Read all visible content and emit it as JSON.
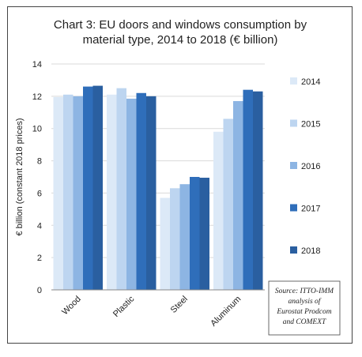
{
  "chart_data": {
    "type": "bar",
    "title_lines": [
      "Chart 3: EU doors and windows consumption by",
      "material type, 2014 to 2018 (€ billion)"
    ],
    "ylabel": "€ billion (constant 2018 prices)",
    "xlabel": "",
    "ylim": [
      0,
      14
    ],
    "yticks": [
      0,
      2,
      4,
      6,
      8,
      10,
      12,
      14
    ],
    "grid": true,
    "legend_position": "right",
    "categories": [
      "Wood",
      "Plastic",
      "Steel",
      "Aluminum"
    ],
    "series": [
      {
        "name": "2014",
        "color": "#dce9f7",
        "values": [
          11.95,
          12.1,
          5.7,
          9.8
        ]
      },
      {
        "name": "2015",
        "color": "#bdd5f0",
        "values": [
          12.1,
          12.5,
          6.3,
          10.6
        ]
      },
      {
        "name": "2016",
        "color": "#8db5e3",
        "values": [
          12.0,
          11.85,
          6.55,
          11.7
        ]
      },
      {
        "name": "2017",
        "color": "#2f6eba",
        "values": [
          12.6,
          12.2,
          7.0,
          12.4
        ]
      },
      {
        "name": "2018",
        "color": "#2a5fa0",
        "values": [
          12.65,
          12.0,
          6.95,
          12.3
        ]
      }
    ],
    "source_note": [
      "Source: ITTO-IMM",
      "analysis of",
      "Eurostat Prodcom",
      "and COMEXT"
    ]
  }
}
